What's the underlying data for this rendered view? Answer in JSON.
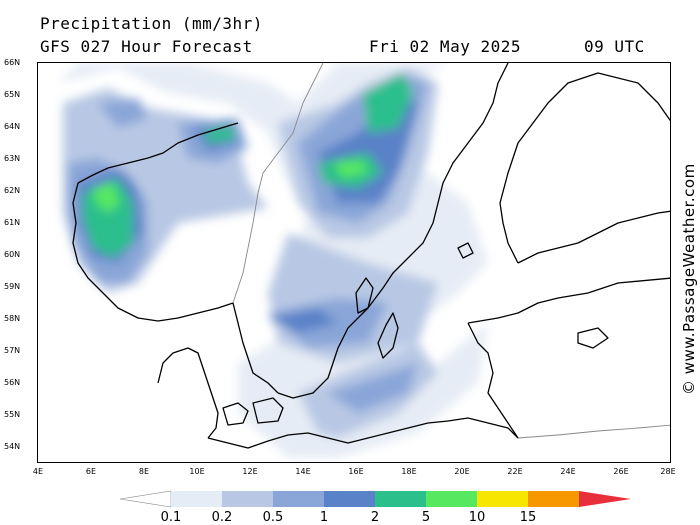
{
  "header": {
    "title": "Precipitation (mm/3hr)",
    "model": "GFS 027 Hour Forecast",
    "date": "Fri 02 May 2025",
    "time": "09 UTC"
  },
  "credit": "© www.PassageWeather.com",
  "axes": {
    "lat_labels": [
      "66N",
      "65N",
      "64N",
      "63N",
      "62N",
      "61N",
      "60N",
      "59N",
      "58N",
      "57N",
      "56N",
      "55N",
      "54N"
    ],
    "lon_labels": [
      "4E",
      "6E",
      "8E",
      "10E",
      "12E",
      "14E",
      "16E",
      "18E",
      "20E",
      "22E",
      "24E",
      "26E",
      "28E"
    ]
  },
  "legend": {
    "labels": [
      "0.1",
      "0.2",
      "0.5",
      "1",
      "2",
      "5",
      "10",
      "15"
    ],
    "colors": [
      "#e6ecf5",
      "#b8c8e4",
      "#8aa6d8",
      "#5a82c8",
      "#2bbf8c",
      "#57e860",
      "#f7e600",
      "#f79800",
      "#e8303c"
    ]
  },
  "colors": {
    "land_outline": "#000000",
    "border": "#888888",
    "background": "#ffffff"
  }
}
